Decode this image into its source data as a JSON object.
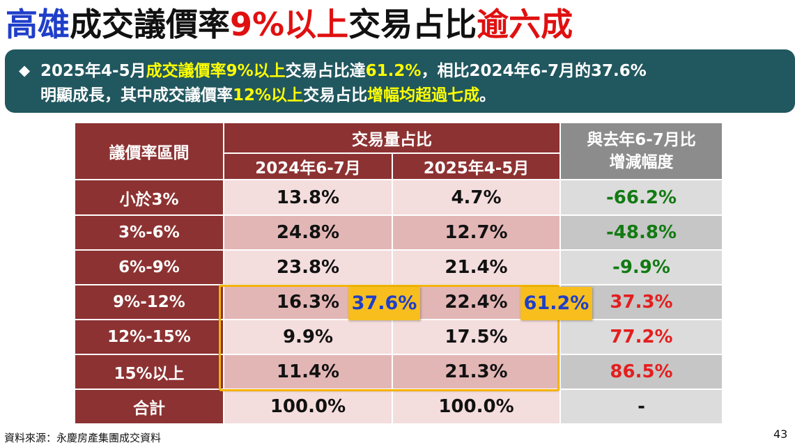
{
  "title": {
    "part1": "高雄",
    "part2": "成交議價率",
    "part3": "9%以上",
    "part4": "交易占比",
    "part5": "逾六成"
  },
  "summary": {
    "bullet": "◆",
    "line1": {
      "a": "2025年4-5月",
      "b": "成交議價率9%以上",
      "c": "交易占比達",
      "d": "61.2%",
      "e": "，相比2024年6-7月的37.6%"
    },
    "line2": {
      "a": "明顯成長，其中成交議價率",
      "b": "12%以上",
      "c": "交易占比",
      "d": "增幅均超過七成",
      "e": "。"
    }
  },
  "table": {
    "header": {
      "range": "議價率區間",
      "share": "交易量占比",
      "period1": "2024年6-7月",
      "period2": "2025年4-5月",
      "change_line1": "與去年6-7月比",
      "change_line2": "增減幅度"
    },
    "rows": [
      {
        "label": "小於3%",
        "v1": "13.8%",
        "v2": "4.7%",
        "change": "-66.2%",
        "trend": "down"
      },
      {
        "label": "3%-6%",
        "v1": "24.8%",
        "v2": "12.7%",
        "change": "-48.8%",
        "trend": "down"
      },
      {
        "label": "6%-9%",
        "v1": "23.8%",
        "v2": "21.4%",
        "change": "-9.9%",
        "trend": "down"
      },
      {
        "label": "9%-12%",
        "v1": "16.3%",
        "v2": "22.4%",
        "change": "37.3%",
        "trend": "up"
      },
      {
        "label": "12%-15%",
        "v1": "9.9%",
        "v2": "17.5%",
        "change": "77.2%",
        "trend": "up"
      },
      {
        "label": "15%以上",
        "v1": "11.4%",
        "v2": "21.3%",
        "change": "86.5%",
        "trend": "up"
      },
      {
        "label": "合計",
        "v1": "100.0%",
        "v2": "100.0%",
        "change": "-",
        "trend": "none"
      }
    ]
  },
  "callouts": {
    "period1_total": "37.6%",
    "period2_total": "61.2%"
  },
  "footer": {
    "source": "資料來源：永慶房產集團成交資料",
    "page": "43"
  },
  "colors": {
    "title_blue": "#1f3ec9",
    "title_red": "#e01010",
    "banner_bg": "#21575f",
    "highlight_yellow": "#ffff00",
    "header_red": "#8d3232",
    "header_gray": "#8c8c8c",
    "down_green": "#127a12",
    "up_red": "#e41e1e",
    "callout_orange": "#f7be1e"
  }
}
